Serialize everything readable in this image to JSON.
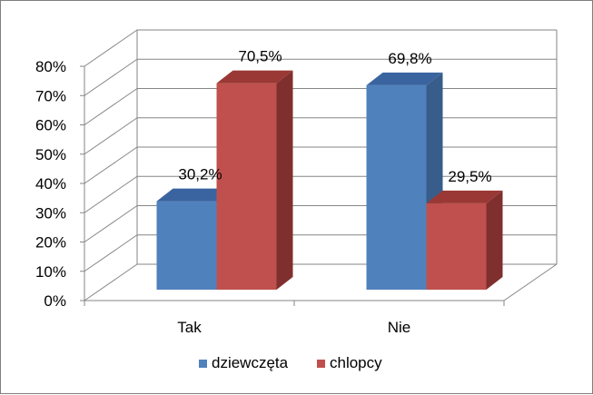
{
  "chart_data": {
    "type": "bar",
    "style": "3d-clustered-column",
    "categories": [
      "Tak",
      "Nie"
    ],
    "series": [
      {
        "name": "dziewczęta",
        "values": [
          30.2,
          69.8
        ],
        "labels": [
          "30,2%",
          "69,8%"
        ],
        "color": "#4f81bd",
        "side_color": "#385d8a",
        "top_color": "#3a64a0"
      },
      {
        "name": "chlopcy",
        "values": [
          70.5,
          29.5
        ],
        "labels": [
          "70,5%",
          "29,5%"
        ],
        "color": "#c0504d",
        "side_color": "#7f2f2d",
        "top_color": "#9a3835"
      }
    ],
    "y_ticks": [
      "0%",
      "10%",
      "20%",
      "30%",
      "40%",
      "50%",
      "60%",
      "70%",
      "80%"
    ],
    "ylim": [
      0,
      80
    ],
    "grid": true,
    "legend": "bottom",
    "title": "",
    "xlabel": "",
    "ylabel": ""
  }
}
